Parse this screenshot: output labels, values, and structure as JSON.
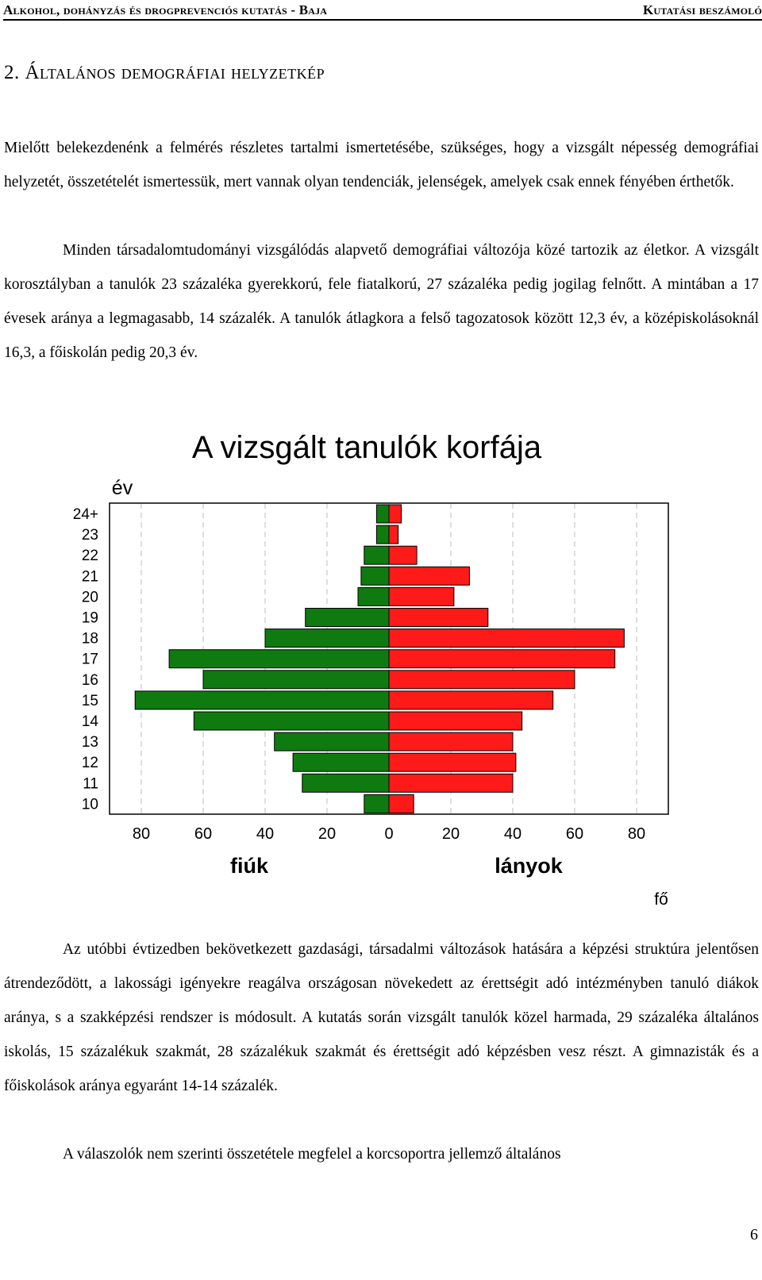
{
  "header": {
    "left": "Alkohol, dohányzás és drogprevenciós kutatás - Baja",
    "right": "Kutatási beszámoló"
  },
  "section_title": "2. Általános demográfiai helyzetkép",
  "paragraphs": {
    "p1": "Mielőtt belekezdenénk a felmérés részletes tartalmi ismertetésébe, szükséges, hogy a vizsgált népesség demográfiai helyzetét, összetételét ismertessük, mert vannak olyan tendenciák, jelenségek, amelyek csak ennek fényében érthetők.",
    "p2": "Minden társadalomtudományi vizsgálódás alapvető demográfiai változója közé tartozik az életkor. A vizsgált korosztályban a tanulók 23 százaléka gyerekkorú, fele fiatalkorú, 27 százaléka pedig jogilag felnőtt. A mintában a 17 évesek aránya a legmagasabb, 14 százalék. A tanulók átlagkora a felső tagozatosok között 12,3 év, a középiskolásoknál 16,3, a főiskolán pedig 20,3 év.",
    "p3": "Az utóbbi évtizedben bekövetkezett gazdasági, társadalmi változások hatására a képzési struktúra jelentősen átrendeződött, a lakossági igényekre reagálva országosan növekedett az érettségit adó intézményben tanuló diákok aránya, s a szakképzési rendszer is módosult. A kutatás során vizsgált tanulók közel harmada, 29 százaléka általános iskolás, 15 százalékuk szakmát, 28 százalékuk szakmát és érettségit adó képzésben vesz részt. A gimnazisták és a főiskolások aránya egyaránt 14-14 százalék.",
    "p4": "A válaszolók nem szerinti összetétele megfelel a korcsoportra jellemző általános"
  },
  "chart_data": {
    "type": "bar",
    "subtype": "population-pyramid",
    "title": "A vizsgált tanulók korfája",
    "ylabel": "év",
    "xlabel_left": "fiúk",
    "xlabel_right": "lányok",
    "unit_label": "fő",
    "categories": [
      "24+",
      "23",
      "22",
      "21",
      "20",
      "19",
      "18",
      "17",
      "16",
      "15",
      "14",
      "13",
      "12",
      "11",
      "10"
    ],
    "series": [
      {
        "name": "fiúk",
        "color": "#0f7a0f",
        "values": [
          4,
          4,
          8,
          9,
          10,
          27,
          40,
          71,
          60,
          82,
          63,
          37,
          31,
          28,
          8
        ]
      },
      {
        "name": "lányok",
        "color": "#ff1a1a",
        "values": [
          4,
          3,
          9,
          26,
          21,
          32,
          76,
          73,
          60,
          53,
          43,
          40,
          41,
          40,
          8
        ]
      }
    ],
    "xlim": [
      -90,
      90
    ],
    "xticks": [
      "80",
      "60",
      "40",
      "20",
      "0",
      "20",
      "40",
      "60",
      "80"
    ],
    "grid": "vertical dashed"
  },
  "page_number": "6"
}
